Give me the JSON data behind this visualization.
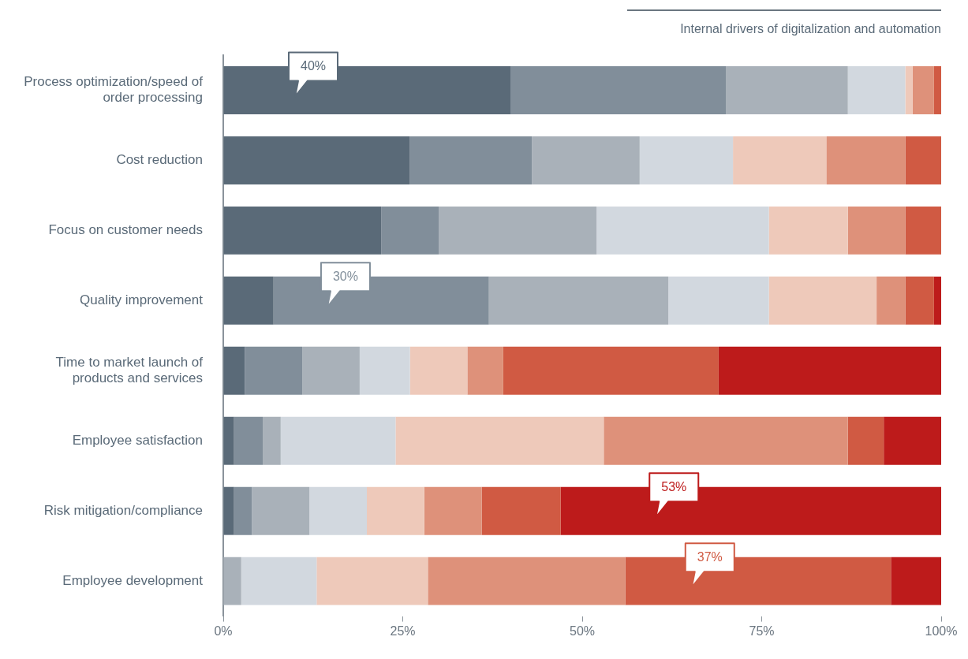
{
  "chart_data": {
    "type": "bar",
    "orientation": "horizontal",
    "stacked": true,
    "title": "Internal drivers of digitalization and automation",
    "categories": [
      "Process optimization/speed of order processing",
      "Cost reduction",
      "Focus on customer needs",
      "Quality improvement",
      "Time to market launch of products and services",
      "Employee satisfaction",
      "Risk mitigation/compliance",
      "Employee development"
    ],
    "series": [
      {
        "color": "#5a6a78",
        "values": [
          40,
          26,
          22,
          7,
          3,
          1.5,
          1.5,
          0
        ]
      },
      {
        "color": "#818e9a",
        "values": [
          30,
          17,
          8,
          30,
          8,
          4,
          2.5,
          0
        ]
      },
      {
        "color": "#a9b1b9",
        "values": [
          17,
          15,
          22,
          25,
          8,
          2.5,
          8,
          2.5
        ]
      },
      {
        "color": "#d2d8df",
        "values": [
          8,
          13,
          24,
          14,
          7,
          16,
          8,
          10.5
        ]
      },
      {
        "color": "#eec9ba",
        "values": [
          1,
          13,
          11,
          15,
          8,
          29,
          8,
          15.5
        ]
      },
      {
        "color": "#de917a",
        "values": [
          3,
          11,
          8,
          4,
          5,
          34,
          8,
          27.5
        ]
      },
      {
        "color": "#d05a43",
        "values": [
          1,
          5,
          5,
          4,
          30,
          5,
          11,
          37
        ]
      },
      {
        "color": "#bd1b1b",
        "values": [
          0,
          0,
          0,
          1,
          31,
          8,
          53,
          7
        ]
      }
    ],
    "xlim": [
      0,
      100
    ],
    "xticks": [
      {
        "value": 0,
        "label": "0%"
      },
      {
        "value": 25,
        "label": "25%"
      },
      {
        "value": 50,
        "label": "50%"
      },
      {
        "value": 75,
        "label": "75%"
      },
      {
        "value": 100,
        "label": "100%"
      }
    ],
    "grid": false,
    "legend": false,
    "annotations": [
      "40%",
      "30%",
      "53%",
      "37%"
    ]
  }
}
